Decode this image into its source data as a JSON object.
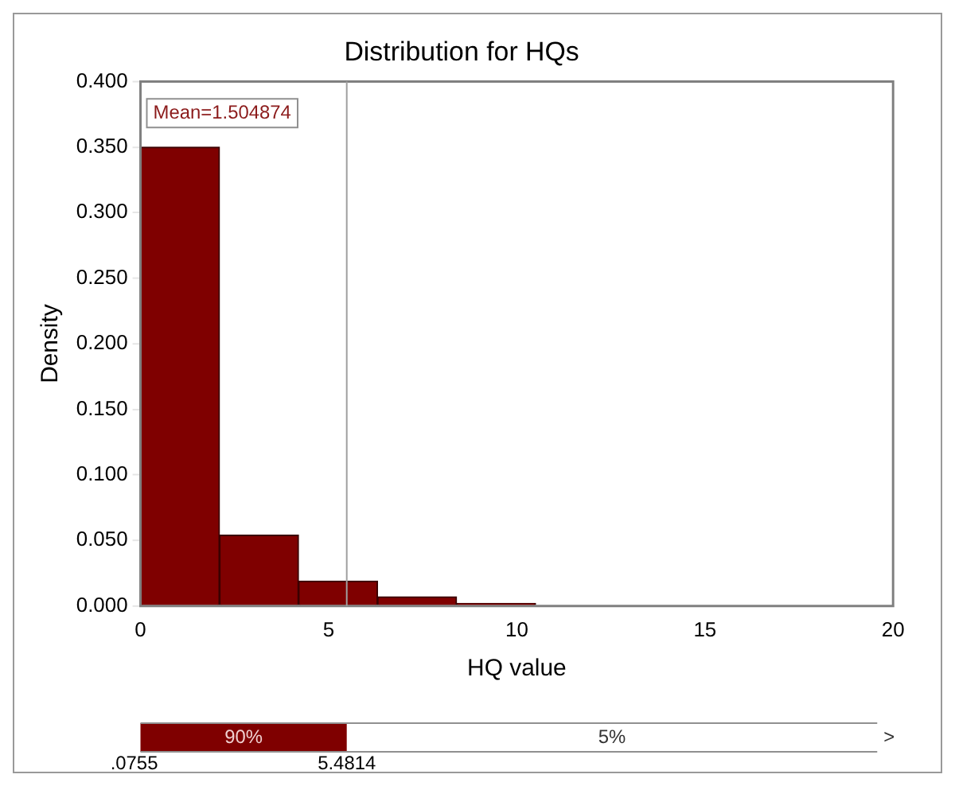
{
  "chart_data": {
    "type": "histogram",
    "title": "Distribution for HQs",
    "xlabel": "HQ value",
    "ylabel": "Density",
    "bins": [
      0,
      2.1,
      4.2,
      6.3,
      8.4,
      10.5
    ],
    "values": [
      0.35,
      0.054,
      0.019,
      0.007,
      0.002
    ],
    "color": "#7f0000",
    "xlim": [
      0,
      20
    ],
    "xticks": [
      0,
      5,
      10,
      15,
      20
    ],
    "ylim": [
      0,
      0.4
    ],
    "yticks": [
      {
        "value": 0,
        "label": "0.000"
      },
      {
        "value": 0.05,
        "label": "0.050"
      },
      {
        "value": 0.1,
        "label": "0.100"
      },
      {
        "value": 0.15,
        "label": "0.150"
      },
      {
        "value": 0.2,
        "label": "0.200"
      },
      {
        "value": 0.25,
        "label": "0.250"
      },
      {
        "value": 0.3,
        "label": "0.300"
      },
      {
        "value": 0.35,
        "label": "0.350"
      },
      {
        "value": 0.4,
        "label": "0.400"
      }
    ],
    "ref_lines": [
      {
        "axis": "x",
        "value": 5.4814,
        "color": "#a0a0a0"
      }
    ],
    "annotations": [
      ".0755",
      "5.4814",
      "90%",
      "5%",
      ">",
      "Mean=1.504874"
    ]
  }
}
